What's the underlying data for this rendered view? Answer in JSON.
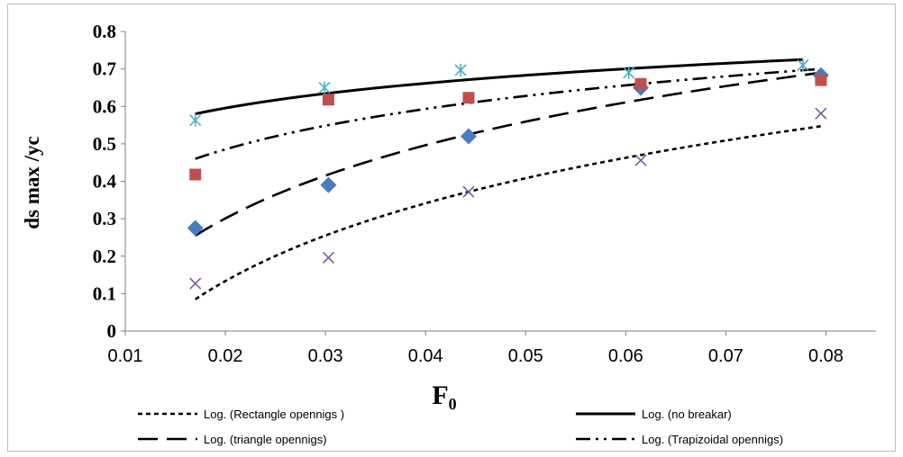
{
  "chart_data": {
    "type": "scatter",
    "title": "",
    "xlabel": "F₀",
    "ylabel": "ds max /yc",
    "xlim": [
      0.01,
      0.085
    ],
    "ylim": [
      0,
      0.8
    ],
    "x_ticks": [
      0.01,
      0.02,
      0.03,
      0.04,
      0.05,
      0.06,
      0.07,
      0.08
    ],
    "y_ticks": [
      0,
      0.1,
      0.2,
      0.3,
      0.4,
      0.5,
      0.6,
      0.7,
      0.8
    ],
    "x_tick_labels": [
      "0.01",
      "0.02",
      "0.03",
      "0.04",
      "0.05",
      "0.06",
      "0.07",
      "0.08"
    ],
    "y_tick_labels": [
      "0",
      "0.1",
      "0.2",
      "0.3",
      "0.4",
      "0.5",
      "0.6",
      "0.7",
      "0.8"
    ],
    "grid": false,
    "legend_position": "bottom",
    "series": [
      {
        "key": "rectangle",
        "marker": "x",
        "color": "#7a5c99",
        "points": [
          [
            0.017,
            0.127
          ],
          [
            0.0303,
            0.196
          ],
          [
            0.0443,
            0.372
          ],
          [
            0.0615,
            0.456
          ],
          [
            0.0795,
            0.581
          ]
        ]
      },
      {
        "key": "triangle",
        "marker": "diamond",
        "color": "#4a7bbf",
        "points": [
          [
            0.017,
            0.275
          ],
          [
            0.0303,
            0.39
          ],
          [
            0.0443,
            0.52
          ],
          [
            0.0615,
            0.65
          ],
          [
            0.0795,
            0.683
          ]
        ]
      },
      {
        "key": "trapezoidal",
        "marker": "square",
        "color": "#c0504d",
        "points": [
          [
            0.017,
            0.418
          ],
          [
            0.0303,
            0.618
          ],
          [
            0.0443,
            0.623
          ],
          [
            0.0615,
            0.66
          ],
          [
            0.0795,
            0.67
          ]
        ]
      },
      {
        "key": "no_breaker",
        "marker": "asterisk",
        "color": "#4bacc6",
        "points": [
          [
            0.017,
            0.563
          ],
          [
            0.0299,
            0.65
          ],
          [
            0.0435,
            0.697
          ],
          [
            0.0603,
            0.69
          ],
          [
            0.0777,
            0.71
          ]
        ]
      }
    ],
    "trendlines": [
      {
        "key": "rectangle",
        "type": "logarithmic",
        "dash": "short-dash",
        "x_range": [
          0.017,
          0.0795
        ],
        "legend": "Log. (Rectangle opennigs )",
        "y_start": 0.085,
        "y_end": 0.547
      },
      {
        "key": "no_breaker",
        "type": "logarithmic",
        "dash": "solid",
        "x_range": [
          0.017,
          0.0777
        ],
        "legend": "Log. (no breakar)",
        "y_start": 0.58,
        "y_end": 0.725
      },
      {
        "key": "triangle",
        "type": "logarithmic",
        "dash": "long-dash",
        "x_range": [
          0.017,
          0.0795
        ],
        "legend": "Log. (triangle opennigs)",
        "y_start": 0.255,
        "y_end": 0.69
      },
      {
        "key": "trapezoidal",
        "type": "logarithmic",
        "dash": "dash-dot-dot",
        "x_range": [
          0.017,
          0.0795
        ],
        "legend": "Log. (Trapizoidal opennigs)",
        "y_start": 0.46,
        "y_end": 0.7
      }
    ]
  }
}
